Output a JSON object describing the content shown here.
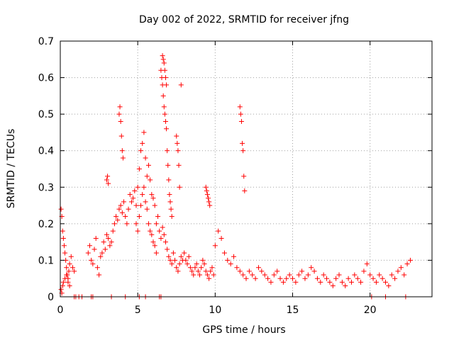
{
  "chart_data": {
    "type": "scatter",
    "title": "Day 002 of 2022, SRMTID for receiver jfng",
    "xlabel": "GPS time / hours",
    "ylabel": "SRMTID / TECUs",
    "xlim": [
      0,
      24
    ],
    "ylim": [
      0,
      0.7
    ],
    "xticks": [
      0,
      5,
      10,
      15,
      20
    ],
    "xtick_labels": [
      "0",
      "5",
      "10",
      "15",
      "20"
    ],
    "yticks": [
      0,
      0.1,
      0.2,
      0.3,
      0.4,
      0.5,
      0.6,
      0.7
    ],
    "ytick_labels": [
      "0",
      "0.1",
      "0.2",
      "0.3",
      "0.4",
      "0.5",
      "0.6",
      "0.7"
    ],
    "grid": true,
    "marker": "+",
    "series": [
      {
        "name": "SRMTID",
        "color": "#ff0000",
        "x": [
          0.05,
          0.1,
          0.15,
          0.2,
          0.25,
          0.3,
          0.35,
          0.4,
          0.45,
          0.5,
          0.55,
          0.6,
          0.7,
          0.8,
          0.9,
          0.05,
          0.1,
          0.15,
          0.2,
          0.3,
          0.4,
          0.5,
          0.6,
          1.8,
          1.9,
          2.0,
          2.1,
          2.2,
          2.3,
          2.4,
          2.5,
          2.6,
          2.7,
          2.8,
          2.9,
          3.0,
          3.1,
          3.2,
          3.3,
          3.4,
          3.5,
          3.6,
          3.7,
          3.8,
          3.9,
          4.0,
          4.1,
          4.2,
          4.3,
          4.4,
          4.5,
          4.6,
          4.7,
          4.8,
          4.9,
          3.0,
          3.05,
          3.1,
          3.8,
          3.85,
          3.9,
          3.95,
          4.0,
          4.05,
          5.0,
          5.1,
          5.2,
          5.3,
          5.4,
          5.5,
          5.6,
          5.7,
          5.8,
          5.9,
          6.0,
          6.1,
          6.2,
          6.3,
          6.4,
          6.5,
          6.6,
          6.7,
          6.8,
          6.9,
          7.0,
          7.1,
          7.2,
          7.3,
          7.4,
          7.5,
          7.6,
          7.7,
          7.8,
          7.9,
          4.9,
          5.0,
          5.1,
          5.2,
          5.3,
          5.4,
          5.5,
          5.6,
          5.7,
          5.8,
          5.9,
          6.0,
          6.1,
          6.2,
          6.5,
          6.55,
          6.6,
          6.65,
          6.7,
          6.75,
          6.8,
          6.85,
          6.9,
          6.95,
          7.0,
          7.05,
          7.1,
          7.15,
          7.2,
          7.5,
          7.55,
          7.6,
          7.65,
          7.7,
          7.8,
          6.6,
          6.65,
          6.7,
          6.75,
          6.8,
          6.85,
          8.0,
          8.1,
          8.2,
          8.3,
          8.4,
          8.5,
          8.6,
          8.7,
          8.8,
          8.9,
          9.0,
          9.1,
          9.2,
          9.3,
          9.4,
          9.5,
          9.6,
          9.7,
          9.8,
          9.9,
          9.4,
          9.45,
          9.5,
          9.55,
          9.6,
          9.65,
          10.0,
          10.2,
          10.4,
          10.6,
          10.8,
          11.0,
          11.2,
          11.4,
          11.6,
          11.8,
          12.0,
          11.6,
          11.65,
          11.7,
          11.75,
          11.8,
          11.85,
          11.9,
          12.2,
          12.4,
          12.6,
          12.8,
          13.0,
          13.2,
          13.4,
          13.6,
          13.8,
          14.0,
          14.2,
          14.4,
          14.6,
          14.8,
          15.0,
          15.2,
          15.4,
          15.6,
          15.8,
          16.0,
          16.2,
          16.4,
          16.6,
          16.8,
          17.0,
          17.2,
          17.4,
          17.6,
          17.8,
          18.0,
          18.2,
          18.4,
          18.6,
          18.8,
          19.0,
          19.2,
          19.4,
          19.6,
          19.8,
          20.0,
          20.2,
          20.4,
          20.6,
          20.8,
          21.0,
          21.2,
          21.4,
          21.6,
          21.8,
          22.0,
          22.2,
          22.4,
          22.6,
          0.9,
          1.0,
          1.2,
          1.4,
          2.0,
          2.1,
          3.3,
          4.2,
          5.1,
          5.5,
          6.4,
          6.5,
          20.1,
          21.0,
          22.3
        ],
        "y": [
          0.24,
          0.22,
          0.18,
          0.16,
          0.14,
          0.12,
          0.1,
          0.08,
          0.06,
          0.05,
          0.07,
          0.09,
          0.11,
          0.08,
          0.07,
          0.02,
          0.01,
          0.03,
          0.04,
          0.05,
          0.06,
          0.04,
          0.03,
          0.12,
          0.14,
          0.1,
          0.09,
          0.13,
          0.16,
          0.08,
          0.06,
          0.11,
          0.12,
          0.15,
          0.13,
          0.17,
          0.16,
          0.14,
          0.15,
          0.18,
          0.2,
          0.22,
          0.21,
          0.24,
          0.25,
          0.23,
          0.26,
          0.22,
          0.2,
          0.24,
          0.28,
          0.26,
          0.27,
          0.29,
          0.25,
          0.32,
          0.33,
          0.31,
          0.5,
          0.52,
          0.48,
          0.44,
          0.4,
          0.38,
          0.3,
          0.35,
          0.4,
          0.42,
          0.45,
          0.38,
          0.33,
          0.36,
          0.32,
          0.28,
          0.27,
          0.25,
          0.2,
          0.22,
          0.18,
          0.16,
          0.19,
          0.17,
          0.15,
          0.13,
          0.11,
          0.1,
          0.09,
          0.12,
          0.1,
          0.08,
          0.07,
          0.09,
          0.11,
          0.1,
          0.2,
          0.18,
          0.22,
          0.25,
          0.28,
          0.3,
          0.26,
          0.24,
          0.2,
          0.18,
          0.17,
          0.15,
          0.14,
          0.12,
          0.62,
          0.6,
          0.58,
          0.55,
          0.52,
          0.5,
          0.48,
          0.46,
          0.4,
          0.36,
          0.32,
          0.28,
          0.26,
          0.24,
          0.22,
          0.44,
          0.42,
          0.4,
          0.36,
          0.3,
          0.58,
          0.66,
          0.65,
          0.64,
          0.62,
          0.6,
          0.58,
          0.12,
          0.1,
          0.09,
          0.11,
          0.08,
          0.07,
          0.06,
          0.08,
          0.09,
          0.07,
          0.06,
          0.08,
          0.1,
          0.09,
          0.07,
          0.06,
          0.05,
          0.07,
          0.08,
          0.06,
          0.3,
          0.29,
          0.28,
          0.27,
          0.26,
          0.25,
          0.14,
          0.18,
          0.16,
          0.12,
          0.1,
          0.09,
          0.11,
          0.08,
          0.07,
          0.06,
          0.05,
          0.52,
          0.5,
          0.48,
          0.42,
          0.4,
          0.33,
          0.29,
          0.07,
          0.06,
          0.05,
          0.08,
          0.07,
          0.06,
          0.05,
          0.04,
          0.06,
          0.07,
          0.05,
          0.04,
          0.05,
          0.06,
          0.05,
          0.04,
          0.06,
          0.07,
          0.05,
          0.06,
          0.08,
          0.07,
          0.05,
          0.04,
          0.06,
          0.05,
          0.04,
          0.03,
          0.05,
          0.06,
          0.04,
          0.03,
          0.05,
          0.04,
          0.06,
          0.05,
          0.04,
          0.07,
          0.09,
          0.06,
          0.05,
          0.04,
          0.06,
          0.05,
          0.04,
          0.03,
          0.06,
          0.05,
          0.07,
          0.08,
          0.06,
          0.09,
          0.1,
          0.0,
          0.0,
          0.0,
          0.0,
          0.0,
          0.0,
          0.0,
          0.0,
          0.0,
          0.0,
          0.0,
          0.0,
          0.0,
          0.0,
          0.0
        ]
      }
    ]
  }
}
